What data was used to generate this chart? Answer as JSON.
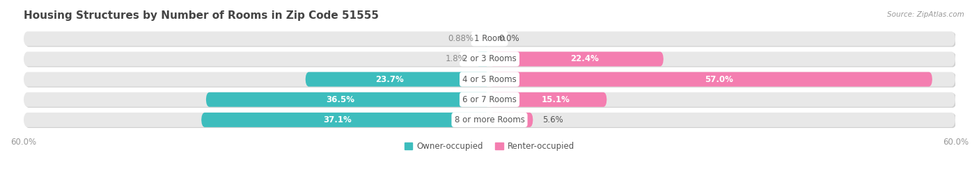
{
  "title": "Housing Structures by Number of Rooms in Zip Code 51555",
  "source": "Source: ZipAtlas.com",
  "categories": [
    "1 Room",
    "2 or 3 Rooms",
    "4 or 5 Rooms",
    "6 or 7 Rooms",
    "8 or more Rooms"
  ],
  "owner_values": [
    0.88,
    1.8,
    23.7,
    36.5,
    37.1
  ],
  "renter_values": [
    0.0,
    22.4,
    57.0,
    15.1,
    5.6
  ],
  "owner_color": "#3dbdbd",
  "renter_color": "#f47eb0",
  "bar_bg_color": "#e8e8e8",
  "bar_bg_shadow": "#d0d0d0",
  "background_color": "#ffffff",
  "xlim_left": -60,
  "xlim_right": 60,
  "bar_height": 0.72,
  "label_fontsize": 8.5,
  "cat_fontsize": 8.5,
  "title_fontsize": 11,
  "source_fontsize": 7.5,
  "legend_fontsize": 8.5,
  "owner_label_color_inside": "#ffffff",
  "owner_label_color_outside": "#888888",
  "renter_label_color_inside": "#ffffff",
  "renter_label_color_outside": "#555555",
  "cat_label_color": "#555555",
  "title_color": "#444444",
  "axis_label_color": "#999999"
}
